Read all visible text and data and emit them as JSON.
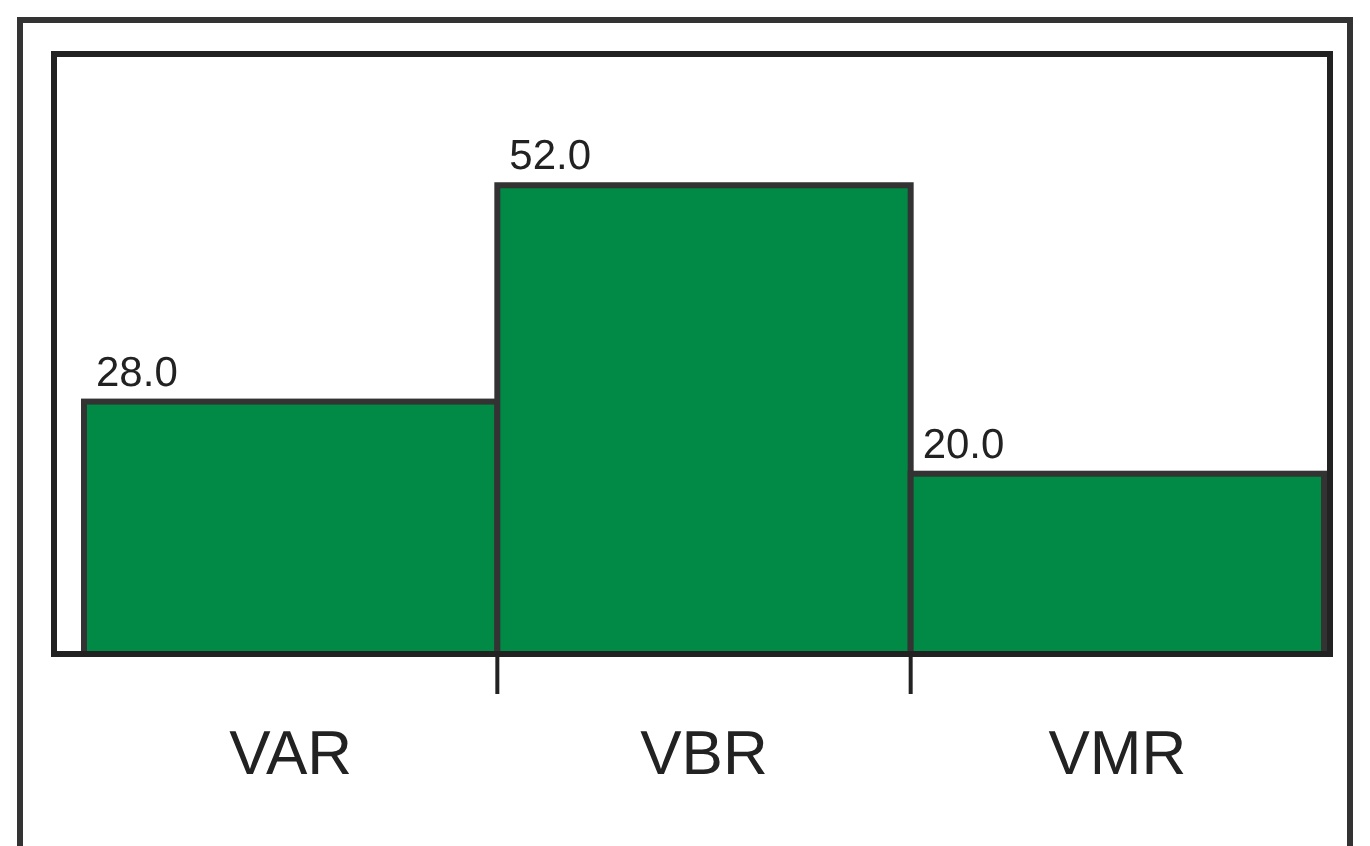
{
  "chart_data": {
    "type": "bar",
    "categories": [
      "VAR",
      "VBR",
      "VMR"
    ],
    "values": [
      28.0,
      52.0,
      20.0
    ],
    "value_labels": [
      "28.0",
      "52.0",
      "20.0"
    ],
    "color": "#008a45"
  }
}
